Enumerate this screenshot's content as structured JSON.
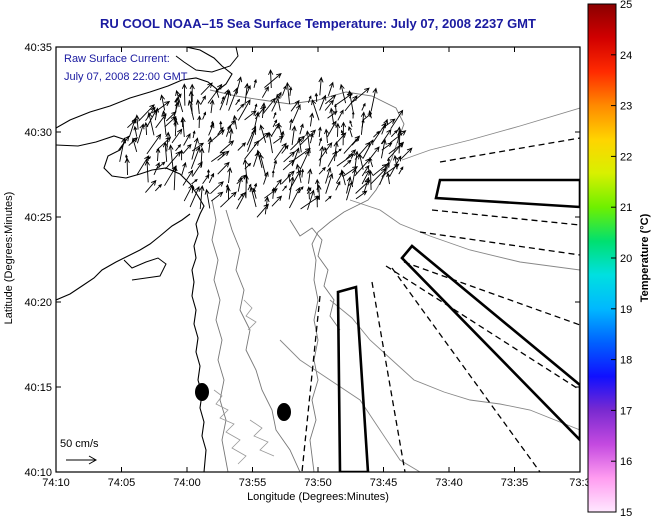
{
  "title": "RU COOL  NOAA–15  Sea Surface Temperature:  July 07, 2008 2237 GMT",
  "annotation": {
    "line1": "Raw Surface Current:",
    "line2": "July 07, 2008 22:00 GMT",
    "scale_label": "50 cm/s"
  },
  "colorbar": {
    "label": "Temperature (°C)",
    "ticks": [
      "25",
      "24",
      "23",
      "22",
      "21",
      "20",
      "19",
      "18",
      "17",
      "16",
      "15"
    ],
    "colors": [
      "#8b0000",
      "#d10000",
      "#ff2a00",
      "#ff8a00",
      "#ffd400",
      "#d8f000",
      "#6ef000",
      "#00e070",
      "#00e0e0",
      "#00b8ff",
      "#0060ff",
      "#1010ff",
      "#7a2ad0",
      "#c44ae0",
      "#ff9cf0",
      "#ffe8ff"
    ]
  },
  "chart_data": {
    "type": "map",
    "title": "RU COOL  NOAA–15  Sea Surface Temperature:  July 07, 2008 2237 GMT",
    "xlabel": "Longitude (Degrees:Minutes)",
    "ylabel": "Latitude (Degrees:Minutes)",
    "x_ticks": [
      "74:10",
      "74:05",
      "74:00",
      "73:55",
      "73:50",
      "73:45",
      "73:40",
      "73:35",
      "73:3"
    ],
    "y_ticks": [
      "40:35",
      "40:30",
      "40:25",
      "40:20",
      "40:15",
      "40:10"
    ],
    "xlim": [
      -74.1667,
      -73.5
    ],
    "ylim": [
      40.1667,
      40.5833
    ],
    "colorbar_range": [
      15,
      25
    ]
  }
}
